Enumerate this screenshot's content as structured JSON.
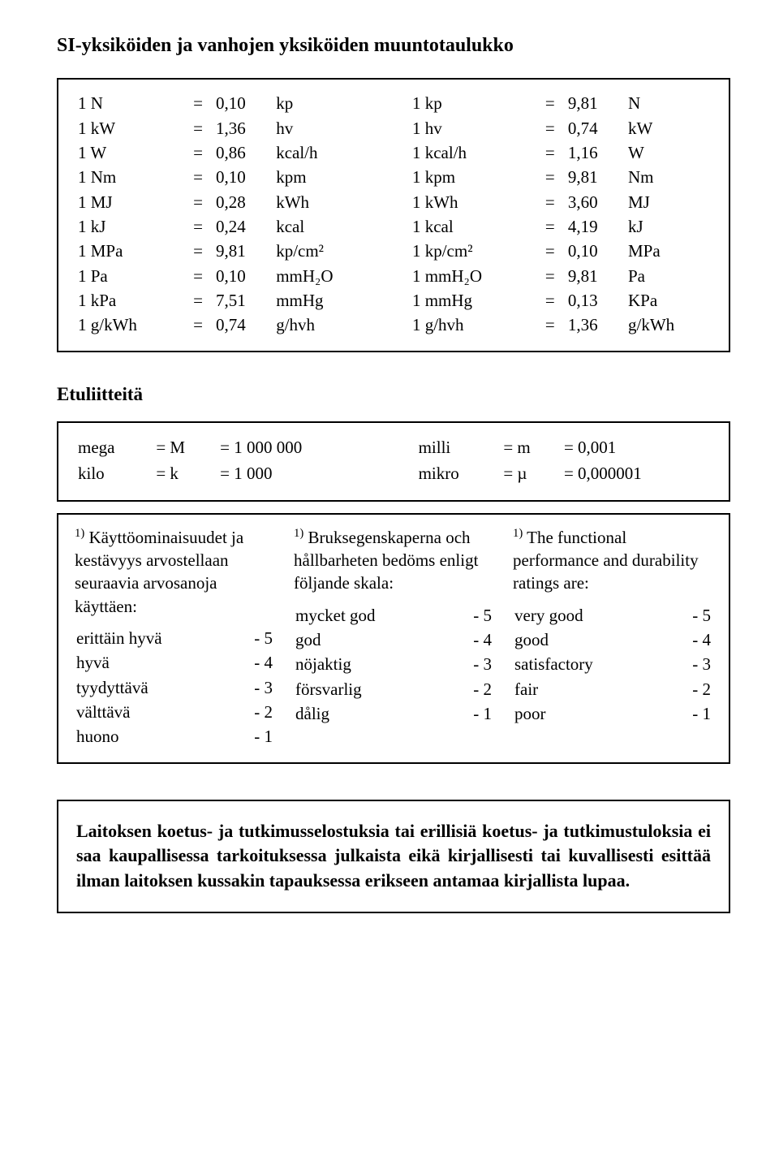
{
  "title": "SI-yksiköiden ja vanhojen yksiköiden muuntotaulukko",
  "units": {
    "rows": [
      {
        "l_u": "1 N",
        "l_v": "0,10",
        "l_to": "kp",
        "r_u": "1 kp",
        "r_v": "9,81",
        "r_to": "N"
      },
      {
        "l_u": "1 kW",
        "l_v": "1,36",
        "l_to": "hv",
        "r_u": "1 hv",
        "r_v": "0,74",
        "r_to": "kW"
      },
      {
        "l_u": "1 W",
        "l_v": "0,86",
        "l_to": "kcal/h",
        "r_u": "1 kcal/h",
        "r_v": "1,16",
        "r_to": "W"
      },
      {
        "l_u": "1 Nm",
        "l_v": "0,10",
        "l_to": "kpm",
        "r_u": "1 kpm",
        "r_v": "9,81",
        "r_to": "Nm"
      },
      {
        "l_u": "1 MJ",
        "l_v": "0,28",
        "l_to": "kWh",
        "r_u": "1 kWh",
        "r_v": "3,60",
        "r_to": "MJ"
      },
      {
        "l_u": "1 kJ",
        "l_v": "0,24",
        "l_to": "kcal",
        "r_u": "1 kcal",
        "r_v": "4,19",
        "r_to": "kJ"
      },
      {
        "l_u": "1 MPa",
        "l_v": "9,81",
        "l_to": "kp/cm²",
        "r_u": "1 kp/cm²",
        "r_v": "0,10",
        "r_to": "MPa"
      },
      {
        "l_u": "1 Pa",
        "l_v": "0,10",
        "l_to": "mmH₂O",
        "r_u": "1 mmH₂O",
        "r_v": "9,81",
        "r_to": "Pa"
      },
      {
        "l_u": "1 kPa",
        "l_v": "7,51",
        "l_to": "mmHg",
        "r_u": "1 mmHg",
        "r_v": "0,13",
        "r_to": "KPa"
      },
      {
        "l_u": "1 g/kWh",
        "l_v": "0,74",
        "l_to": "g/hvh",
        "r_u": "1 g/hvh",
        "r_v": "1,36",
        "r_to": "g/kWh"
      }
    ]
  },
  "prefixes": {
    "title": "Etuliitteitä",
    "rows": [
      {
        "name": "mega",
        "sym": "M",
        "factor": "1 000 000",
        "name2": "milli",
        "sym2": "m",
        "factor2": "0,001"
      },
      {
        "name": "kilo",
        "sym": "k",
        "factor": "1 000",
        "name2": "mikro",
        "sym2": "µ",
        "factor2": "0,000001"
      }
    ]
  },
  "ratings": {
    "cols": [
      {
        "intro_marker": "1)",
        "intro": "Käyttöominaisuudet ja kestävyys arvostellaan seuraavia arvosanoja käyttäen:",
        "list": [
          {
            "label": "erittäin hyvä",
            "score": "- 5"
          },
          {
            "label": "hyvä",
            "score": "- 4"
          },
          {
            "label": "tyydyttävä",
            "score": "- 3"
          },
          {
            "label": "välttävä",
            "score": "- 2"
          },
          {
            "label": "huono",
            "score": "- 1"
          }
        ]
      },
      {
        "intro_marker": "1)",
        "intro": "Bruksegenskaperna och hållbarheten bedöms enligt följande skala:",
        "list": [
          {
            "label": "mycket god",
            "score": "- 5"
          },
          {
            "label": "god",
            "score": "- 4"
          },
          {
            "label": "nöjaktig",
            "score": "- 3"
          },
          {
            "label": "försvarlig",
            "score": "- 2"
          },
          {
            "label": "dålig",
            "score": "- 1"
          }
        ]
      },
      {
        "intro_marker": "1)",
        "intro": "The functional performance and durability ratings are:",
        "list": [
          {
            "label": "very good",
            "score": "- 5"
          },
          {
            "label": "good",
            "score": "- 4"
          },
          {
            "label": "satisfactory",
            "score": "- 3"
          },
          {
            "label": "fair",
            "score": "- 2"
          },
          {
            "label": "poor",
            "score": "- 1"
          }
        ]
      }
    ]
  },
  "notice": "Laitoksen koetus- ja tutkimusselostuksia tai erillisiä koetus- ja tutkimustuloksia ei saa kaupallisessa tarkoituksessa julkaista eikä kirjallisesti tai kuvallisesti esittää ilman laitoksen kussakin tapauksessa erikseen antamaa kirjallista lupaa.",
  "eq": "="
}
